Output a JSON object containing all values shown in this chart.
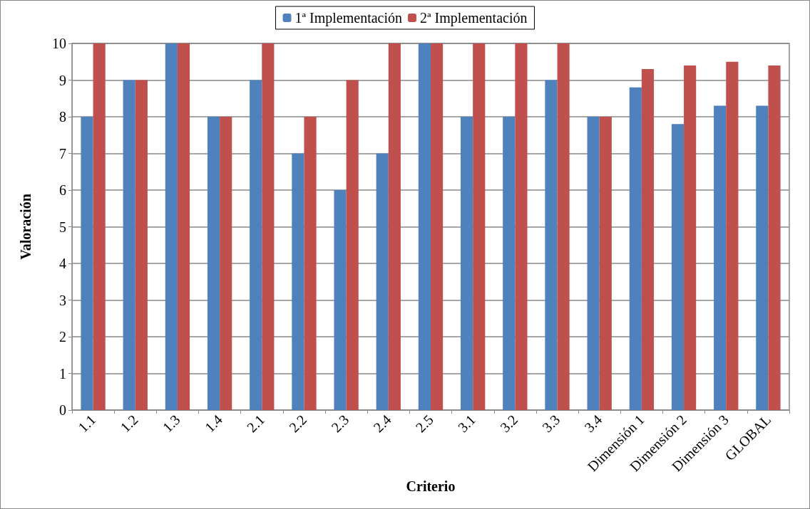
{
  "chart_data": {
    "type": "bar",
    "xlabel": "Criterio",
    "ylabel": "Valoración",
    "categories": [
      "1.1",
      "1.2",
      "1.3",
      "1.4",
      "2.1",
      "2.2",
      "2.3",
      "2.4",
      "2.5",
      "3.1",
      "3.2",
      "3.3",
      "3.4",
      "Dimensión 1",
      "Dimensión 2",
      "Dimensión 3",
      "GLOBAL"
    ],
    "series": [
      {
        "name": "1ª Implementación",
        "color": "#4f81bd",
        "values": [
          8,
          9,
          10,
          8,
          9,
          7,
          6,
          7,
          10,
          8,
          8,
          9,
          8,
          8.8,
          7.8,
          8.3,
          8.3
        ]
      },
      {
        "name": "2ª Implementación",
        "color": "#c0504d",
        "values": [
          10,
          9,
          10,
          8,
          10,
          8,
          9,
          10,
          10,
          10,
          10,
          10,
          8,
          9.3,
          9.4,
          9.5,
          9.4
        ]
      }
    ],
    "ylim": [
      0,
      10
    ],
    "yticks": [
      0,
      1,
      2,
      3,
      4,
      5,
      6,
      7,
      8,
      9,
      10
    ],
    "grid": "y",
    "legend": "top"
  }
}
